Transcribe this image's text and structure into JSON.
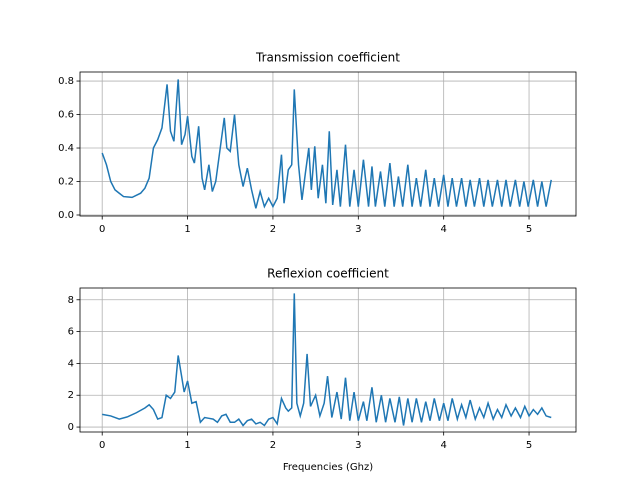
{
  "chart_data": [
    {
      "type": "line",
      "title": "Transmission coefficient",
      "x": [
        0,
        0.05,
        0.1,
        0.15,
        0.2,
        0.25,
        0.35,
        0.45,
        0.5,
        0.55,
        0.6,
        0.65,
        0.7,
        0.76,
        0.8,
        0.84,
        0.89,
        0.93,
        0.97,
        1.0,
        1.05,
        1.08,
        1.13,
        1.17,
        1.2,
        1.25,
        1.29,
        1.33,
        1.43,
        1.46,
        1.5,
        1.55,
        1.6,
        1.65,
        1.7,
        1.75,
        1.8,
        1.85,
        1.9,
        1.95,
        2.0,
        2.05,
        2.1,
        2.13,
        2.18,
        2.22,
        2.25,
        2.3,
        2.34,
        2.38,
        2.42,
        2.45,
        2.49,
        2.53,
        2.58,
        2.62,
        2.66,
        2.7,
        2.75,
        2.79,
        2.85,
        2.9,
        2.95,
        3.0,
        3.06,
        3.12,
        3.16,
        3.2,
        3.26,
        3.31,
        3.37,
        3.42,
        3.47,
        3.52,
        3.58,
        3.63,
        3.68,
        3.73,
        3.79,
        3.84,
        3.89,
        3.94,
        4.0,
        4.05,
        4.1,
        4.15,
        4.21,
        4.26,
        4.31,
        4.36,
        4.42,
        4.47,
        4.52,
        4.57,
        4.63,
        4.68,
        4.73,
        4.78,
        4.84,
        4.89,
        4.94,
        4.99,
        5.05,
        5.1,
        5.15,
        5.2,
        5.26
      ],
      "series": [
        {
          "color": "#1f77b4",
          "values": [
            0.37,
            0.3,
            0.2,
            0.15,
            0.13,
            0.11,
            0.105,
            0.13,
            0.16,
            0.22,
            0.4,
            0.45,
            0.52,
            0.78,
            0.5,
            0.44,
            0.81,
            0.42,
            0.48,
            0.59,
            0.35,
            0.31,
            0.53,
            0.22,
            0.15,
            0.3,
            0.14,
            0.2,
            0.58,
            0.4,
            0.38,
            0.6,
            0.3,
            0.17,
            0.28,
            0.15,
            0.04,
            0.14,
            0.05,
            0.1,
            0.05,
            0.1,
            0.36,
            0.07,
            0.27,
            0.3,
            0.75,
            0.3,
            0.09,
            0.25,
            0.4,
            0.15,
            0.41,
            0.1,
            0.3,
            0.07,
            0.5,
            0.06,
            0.27,
            0.05,
            0.42,
            0.05,
            0.27,
            0.05,
            0.33,
            0.05,
            0.29,
            0.05,
            0.26,
            0.05,
            0.31,
            0.05,
            0.23,
            0.05,
            0.3,
            0.05,
            0.22,
            0.05,
            0.27,
            0.05,
            0.22,
            0.05,
            0.24,
            0.05,
            0.22,
            0.05,
            0.22,
            0.05,
            0.21,
            0.05,
            0.22,
            0.05,
            0.21,
            0.05,
            0.21,
            0.05,
            0.21,
            0.05,
            0.21,
            0.05,
            0.2,
            0.05,
            0.21,
            0.05,
            0.2,
            0.05,
            0.21
          ]
        }
      ],
      "xlim": [
        -0.26,
        5.55
      ],
      "xticks": [
        0,
        1,
        2,
        3,
        4,
        5
      ],
      "ylim": [
        -0.006,
        0.854
      ],
      "yticks": [
        {
          "value": 0,
          "label": "0.0"
        },
        0.2,
        0.4,
        0.6,
        0.8
      ],
      "grid": true
    },
    {
      "type": "line",
      "title": "Reflexion coefficient",
      "x_label": "Frequencies (Ghz)",
      "x": [
        0,
        0.1,
        0.2,
        0.3,
        0.4,
        0.5,
        0.55,
        0.6,
        0.65,
        0.7,
        0.75,
        0.8,
        0.85,
        0.89,
        0.93,
        0.96,
        1.0,
        1.05,
        1.1,
        1.15,
        1.2,
        1.25,
        1.3,
        1.35,
        1.4,
        1.45,
        1.5,
        1.55,
        1.6,
        1.65,
        1.7,
        1.75,
        1.8,
        1.85,
        1.9,
        1.95,
        2.0,
        2.05,
        2.1,
        2.15,
        2.18,
        2.22,
        2.25,
        2.28,
        2.32,
        2.36,
        2.4,
        2.44,
        2.5,
        2.55,
        2.6,
        2.64,
        2.69,
        2.75,
        2.8,
        2.85,
        2.9,
        2.95,
        3.0,
        3.06,
        3.1,
        3.16,
        3.21,
        3.27,
        3.32,
        3.37,
        3.43,
        3.48,
        3.53,
        3.58,
        3.63,
        3.68,
        3.74,
        3.79,
        3.84,
        3.89,
        3.95,
        4.0,
        4.05,
        4.1,
        4.16,
        4.21,
        4.26,
        4.31,
        4.37,
        4.42,
        4.47,
        4.52,
        4.58,
        4.63,
        4.68,
        4.73,
        4.79,
        4.84,
        4.9,
        4.95,
        5.0,
        5.05,
        5.1,
        5.15,
        5.2,
        5.26
      ],
      "series": [
        {
          "color": "#1f77b4",
          "values": [
            0.8,
            0.7,
            0.5,
            0.65,
            0.9,
            1.2,
            1.4,
            1.1,
            0.5,
            0.6,
            2.0,
            1.8,
            2.2,
            4.5,
            3.2,
            2.2,
            2.9,
            1.5,
            1.6,
            0.3,
            0.6,
            0.55,
            0.5,
            0.3,
            0.7,
            0.8,
            0.3,
            0.3,
            0.5,
            0.1,
            0.4,
            0.5,
            0.2,
            0.3,
            0.1,
            0.5,
            0.6,
            0.2,
            1.8,
            1.2,
            1.0,
            1.2,
            8.4,
            1.5,
            0.7,
            1.5,
            4.6,
            1.3,
            2.0,
            0.7,
            1.5,
            3.2,
            0.6,
            2.2,
            0.5,
            3.1,
            0.4,
            2.2,
            0.4,
            1.6,
            0.4,
            2.5,
            0.3,
            2.0,
            0.3,
            1.8,
            0.3,
            1.9,
            0.1,
            1.8,
            0.3,
            1.8,
            0.3,
            1.6,
            0.4,
            1.8,
            0.4,
            1.5,
            0.4,
            1.8,
            0.5,
            1.4,
            0.6,
            1.7,
            0.5,
            1.2,
            0.6,
            1.5,
            0.5,
            1.1,
            0.6,
            1.4,
            0.7,
            1.2,
            0.6,
            1.3,
            0.7,
            1.1,
            0.8,
            1.2,
            0.7,
            0.6
          ]
        }
      ],
      "xlim": [
        -0.26,
        5.55
      ],
      "xticks": [
        0,
        1,
        2,
        3,
        4,
        5
      ],
      "ylim": [
        -0.31,
        8.74
      ],
      "yticks": [
        0,
        2,
        4,
        6,
        8
      ],
      "grid": true
    }
  ]
}
